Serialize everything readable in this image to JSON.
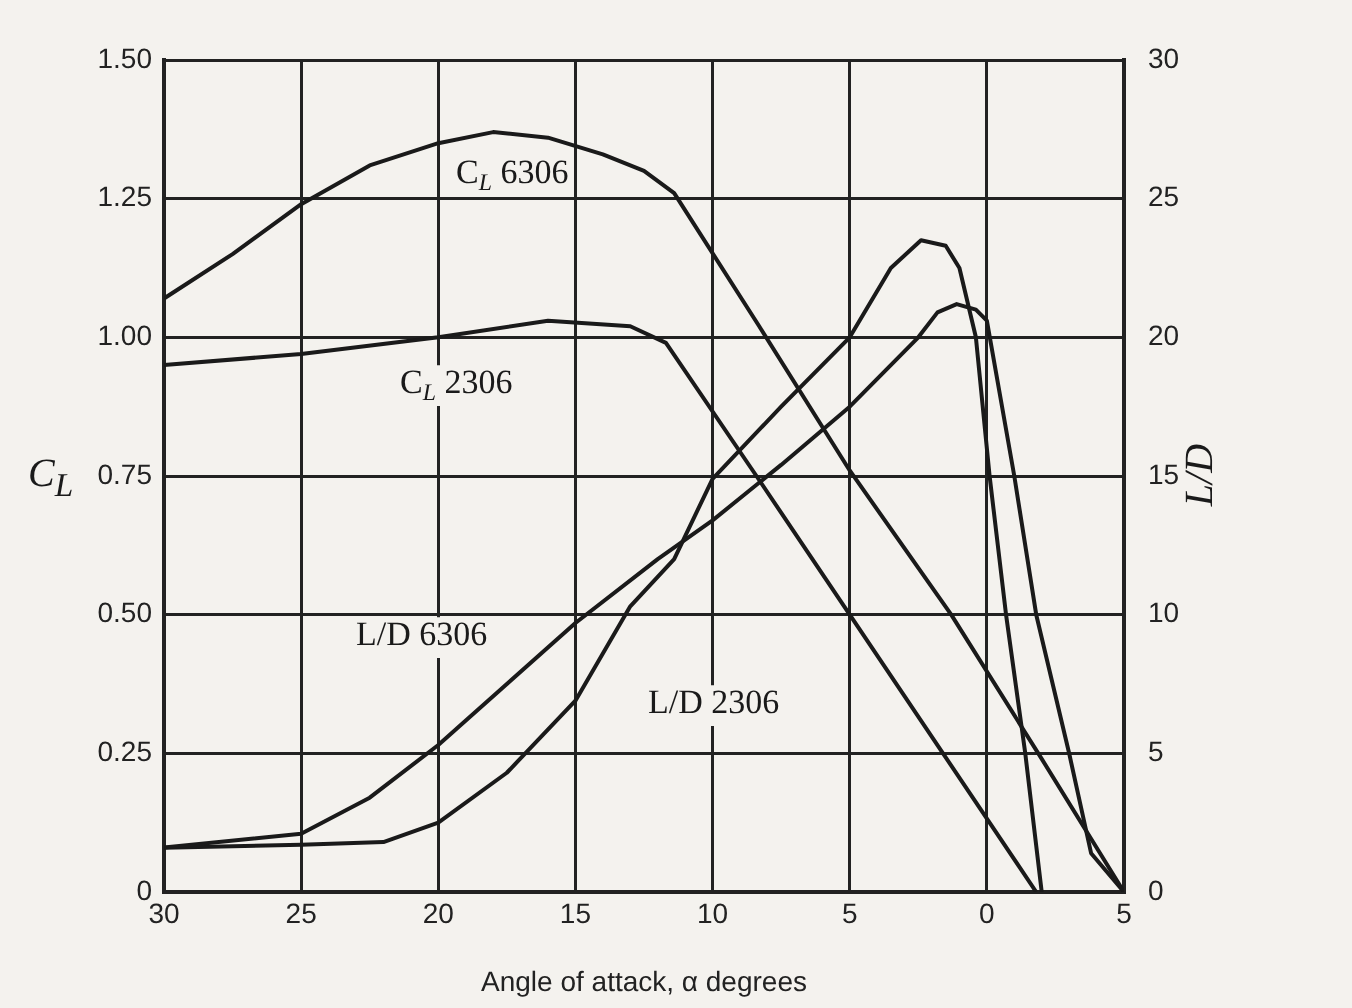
{
  "chart_data": {
    "type": "line",
    "xlabel": "Angle of attack, α degrees",
    "ylabel": "C$_{L}$",
    "y2label": "L/D",
    "xlim": [
      30,
      -5
    ],
    "xticks": [
      30,
      25,
      20,
      15,
      10,
      5,
      0,
      {
        "value": -5,
        "label": "5"
      }
    ],
    "ylim": [
      0,
      1.5
    ],
    "yticks": [
      0,
      {
        "value": 0.25,
        "label": "0.25"
      },
      {
        "value": 0.5,
        "label": "0.50"
      },
      {
        "value": 0.75,
        "label": "0.75"
      },
      {
        "value": 1,
        "label": "1.00"
      },
      {
        "value": 1.25,
        "label": "1.25"
      },
      {
        "value": 1.5,
        "label": "1.50"
      }
    ],
    "y2lim": [
      0,
      30
    ],
    "y2ticks": [
      0,
      5,
      10,
      15,
      20,
      25,
      30
    ],
    "grid": true,
    "legend": false,
    "marker": "none",
    "line_style": "solid",
    "series": [
      {
        "name": "C$_{L}$ 6306",
        "color": "#1a1a1a",
        "x": [
          30,
          27.5,
          25,
          22.5,
          20,
          18,
          16,
          14,
          12.5,
          11.4,
          8.3,
          5,
          1.3,
          -2,
          -5
        ],
        "values": [
          1.07,
          1.15,
          1.24,
          1.31,
          1.35,
          1.37,
          1.36,
          1.33,
          1.3,
          1.26,
          1.02,
          0.76,
          0.5,
          0.24,
          0
        ]
      },
      {
        "name": "C$_{L}$ 2306",
        "color": "#1a1a1a",
        "x": [
          30,
          25,
          20,
          16,
          13,
          11.7,
          8.4,
          5,
          -1.8
        ],
        "values": [
          0.95,
          0.97,
          1.0,
          1.03,
          1.02,
          0.99,
          0.75,
          0.5,
          0
        ]
      },
      {
        "name": "L/D 6306",
        "color": "#1a1a1a",
        "axis": "y2",
        "x": [
          30,
          25,
          22.5,
          20,
          17.5,
          15,
          12,
          10,
          7.5,
          5,
          2.5,
          1.8,
          1.1,
          0.4,
          0,
          -1,
          -1.8,
          -3,
          -3.8,
          -5
        ],
        "values": [
          1.6,
          2.1,
          3.4,
          5.3,
          7.5,
          9.7,
          12,
          13.4,
          15.4,
          17.5,
          20,
          20.9,
          21.2,
          21,
          20.6,
          15,
          10,
          5,
          1.4,
          0
        ]
      },
      {
        "name": "L/D 2306",
        "color": "#1a1a1a",
        "axis": "y2",
        "x": [
          30,
          25,
          22,
          20,
          17.5,
          15,
          13,
          11.4,
          10,
          7.5,
          5,
          3.5,
          2.4,
          1.5,
          1.0,
          0.4,
          -0.1,
          -0.7,
          -1.4,
          -2
        ],
        "values": [
          1.6,
          1.7,
          1.8,
          2.5,
          4.3,
          6.9,
          10.3,
          12,
          14.9,
          17.5,
          20,
          22.5,
          23.5,
          23.3,
          22.5,
          20,
          15,
          10,
          5,
          0
        ]
      }
    ]
  }
}
